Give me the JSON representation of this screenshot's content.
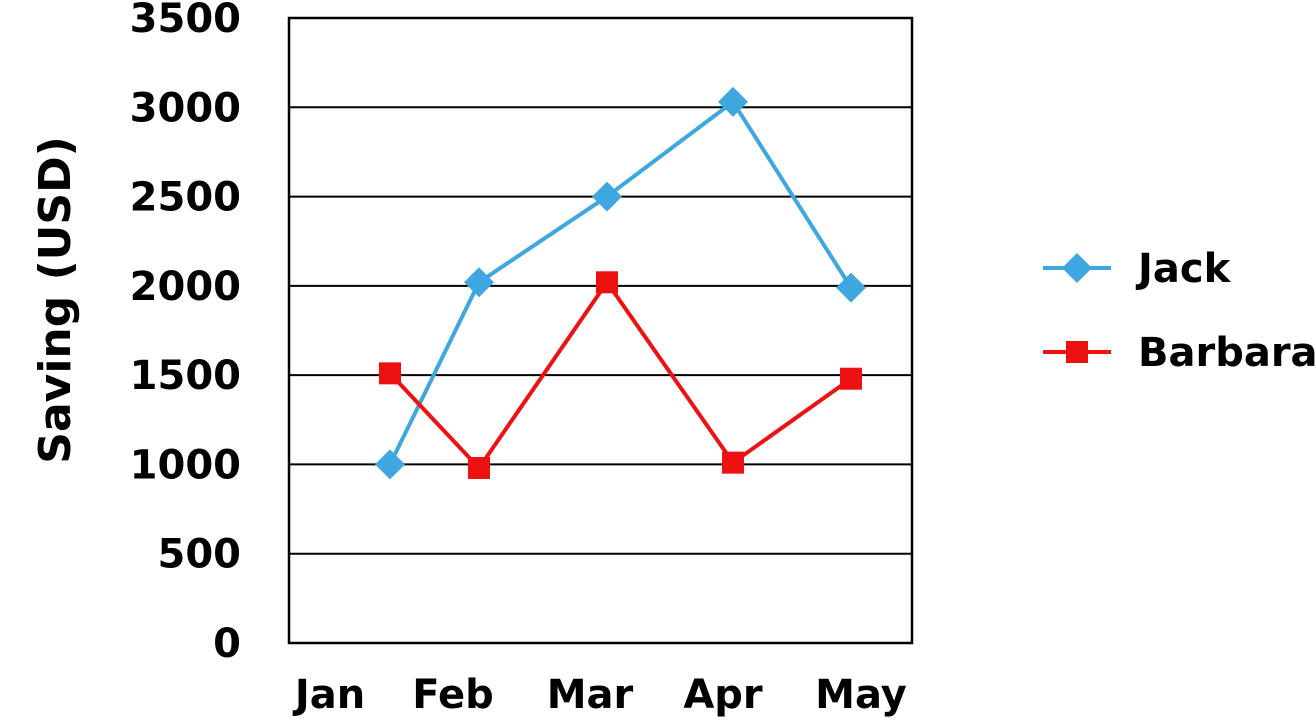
{
  "chart_data": {
    "type": "line",
    "ylabel": "Saving (USD)",
    "xlabel": "",
    "categories": [
      "Jan",
      "Feb",
      "Mar",
      "Apr",
      "May"
    ],
    "yticks": [
      "0",
      "500",
      "1000",
      "1500",
      "2000",
      "2500",
      "3000",
      "3500"
    ],
    "ylim": [
      0,
      3500
    ],
    "grid": true,
    "legend_position": "right",
    "series": [
      {
        "name": "Jack",
        "color": "#3fa7e0",
        "marker": "diamond",
        "values": [
          1000,
          2020,
          2500,
          3030,
          1990
        ]
      },
      {
        "name": "Barbara",
        "color": "#ee1111",
        "marker": "square",
        "values": [
          1510,
          980,
          2020,
          1010,
          1480
        ]
      }
    ]
  }
}
